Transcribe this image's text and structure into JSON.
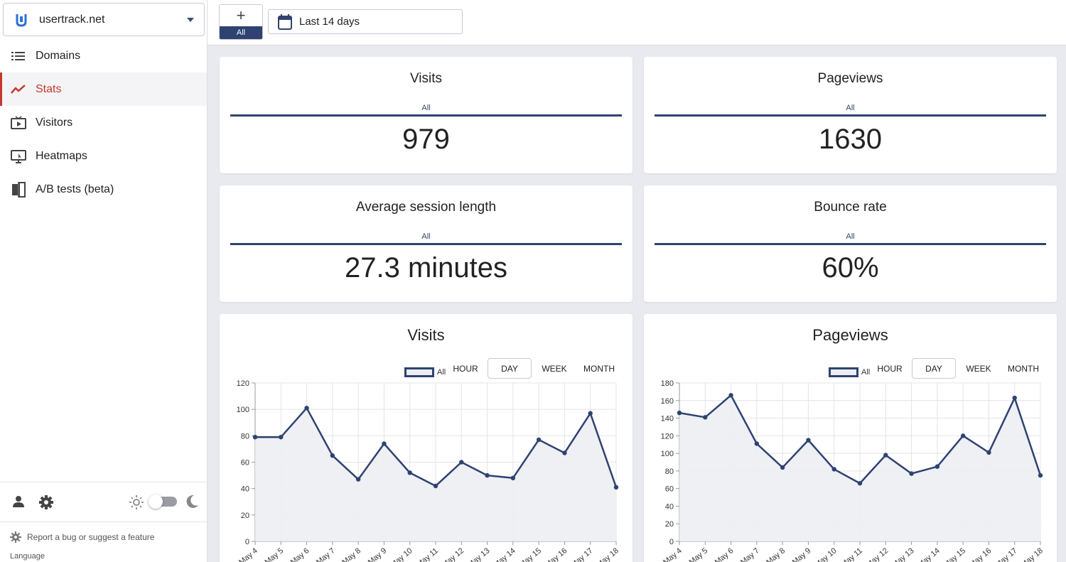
{
  "sidebar": {
    "domain": "usertrack.net",
    "nav": [
      {
        "label": "Domains",
        "icon": "list-icon"
      },
      {
        "label": "Stats",
        "icon": "trend-icon"
      },
      {
        "label": "Visitors",
        "icon": "video-icon"
      },
      {
        "label": "Heatmaps",
        "icon": "heatmap-icon"
      },
      {
        "label": "A/B tests (beta)",
        "icon": "ab-test-icon"
      }
    ],
    "active_item": "Stats",
    "report_label": "Report a bug or suggest a feature",
    "language_label": "Language"
  },
  "topbar": {
    "segment_plus": "+",
    "segment_label": "All",
    "date_range": "Last 14 days"
  },
  "stats": {
    "visits": {
      "title": "Visits",
      "segment": "All",
      "value": "979"
    },
    "pageviews": {
      "title": "Pageviews",
      "segment": "All",
      "value": "1630"
    },
    "avg_session": {
      "title": "Average session length",
      "segment": "All",
      "value": "27.3 minutes"
    },
    "bounce": {
      "title": "Bounce rate",
      "segment": "All",
      "value": "60%"
    }
  },
  "granularity": [
    "HOUR",
    "DAY",
    "WEEK",
    "MONTH"
  ],
  "active_granularity": "DAY",
  "colors": {
    "accent": "#2f4271",
    "active_nav": "#c4392c",
    "fill": "#eceef3"
  },
  "chart_data": [
    {
      "type": "area",
      "title": "Visits",
      "legend": [
        "All"
      ],
      "categories": [
        "May 4",
        "May 5",
        "May 6",
        "May 7",
        "May 8",
        "May 9",
        "May 10",
        "May 11",
        "May 12",
        "May 13",
        "May 14",
        "May 15",
        "May 16",
        "May 17",
        "May 18"
      ],
      "series": [
        {
          "name": "All",
          "values": [
            79,
            79,
            101,
            65,
            47,
            74,
            52,
            42,
            60,
            50,
            48,
            77,
            67,
            97,
            41
          ]
        }
      ],
      "ylim": [
        0,
        120
      ],
      "yticks": [
        0,
        20,
        40,
        60,
        80,
        100,
        120
      ],
      "grid": true
    },
    {
      "type": "area",
      "title": "Pageviews",
      "legend": [
        "All"
      ],
      "categories": [
        "May 4",
        "May 5",
        "May 6",
        "May 7",
        "May 8",
        "May 9",
        "May 10",
        "May 11",
        "May 12",
        "May 13",
        "May 14",
        "May 15",
        "May 16",
        "May 17",
        "May 18"
      ],
      "series": [
        {
          "name": "All",
          "values": [
            146,
            141,
            166,
            111,
            84,
            115,
            82,
            66,
            98,
            77,
            85,
            120,
            101,
            163,
            75
          ]
        }
      ],
      "ylim": [
        0,
        180
      ],
      "yticks": [
        0,
        20,
        40,
        60,
        80,
        100,
        120,
        140,
        160,
        180
      ],
      "grid": true
    }
  ]
}
